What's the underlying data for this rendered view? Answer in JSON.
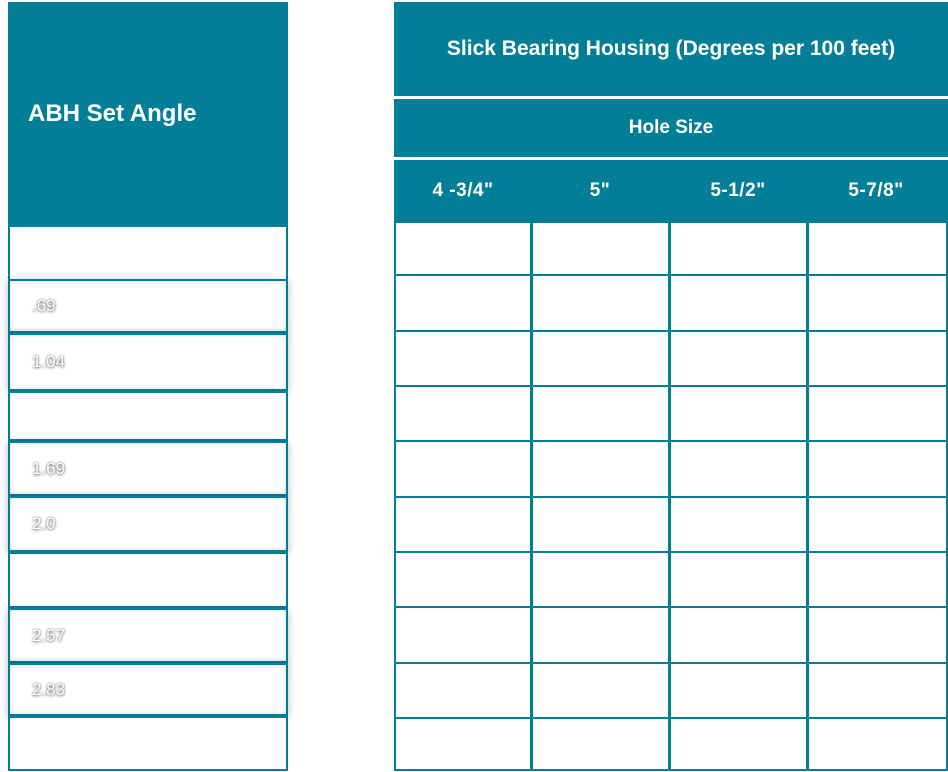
{
  "left_table": {
    "header": "ABH Set Angle",
    "rows": [
      {
        "value": ""
      },
      {
        "value": ".69"
      },
      {
        "value": "1.04"
      },
      {
        "value": ""
      },
      {
        "value": "1.69"
      },
      {
        "value": "2.0"
      },
      {
        "value": ""
      },
      {
        "value": "2.57"
      },
      {
        "value": "2.83"
      },
      {
        "value": ""
      }
    ]
  },
  "right_table": {
    "title": "Slick Bearing Housing (Degrees per 100 feet)",
    "subtitle": "Hole Size",
    "columns": [
      "4 -3/4\"",
      "5\"",
      "5-1/2\"",
      "5-7/8\""
    ],
    "rows": [
      [
        "",
        "",
        "",
        ""
      ],
      [
        "",
        "",
        "",
        ""
      ],
      [
        "",
        "",
        "",
        ""
      ],
      [
        "",
        "",
        "",
        ""
      ],
      [
        "",
        "",
        "",
        ""
      ],
      [
        "",
        "",
        "",
        ""
      ],
      [
        "",
        "",
        "",
        ""
      ],
      [
        "",
        "",
        "",
        ""
      ],
      [
        "",
        "",
        "",
        ""
      ],
      [
        "",
        "",
        "",
        ""
      ]
    ]
  },
  "colors": {
    "header_bg": "#027f97",
    "header_text": "#ffffff",
    "cell_bg": "#ffffff"
  }
}
